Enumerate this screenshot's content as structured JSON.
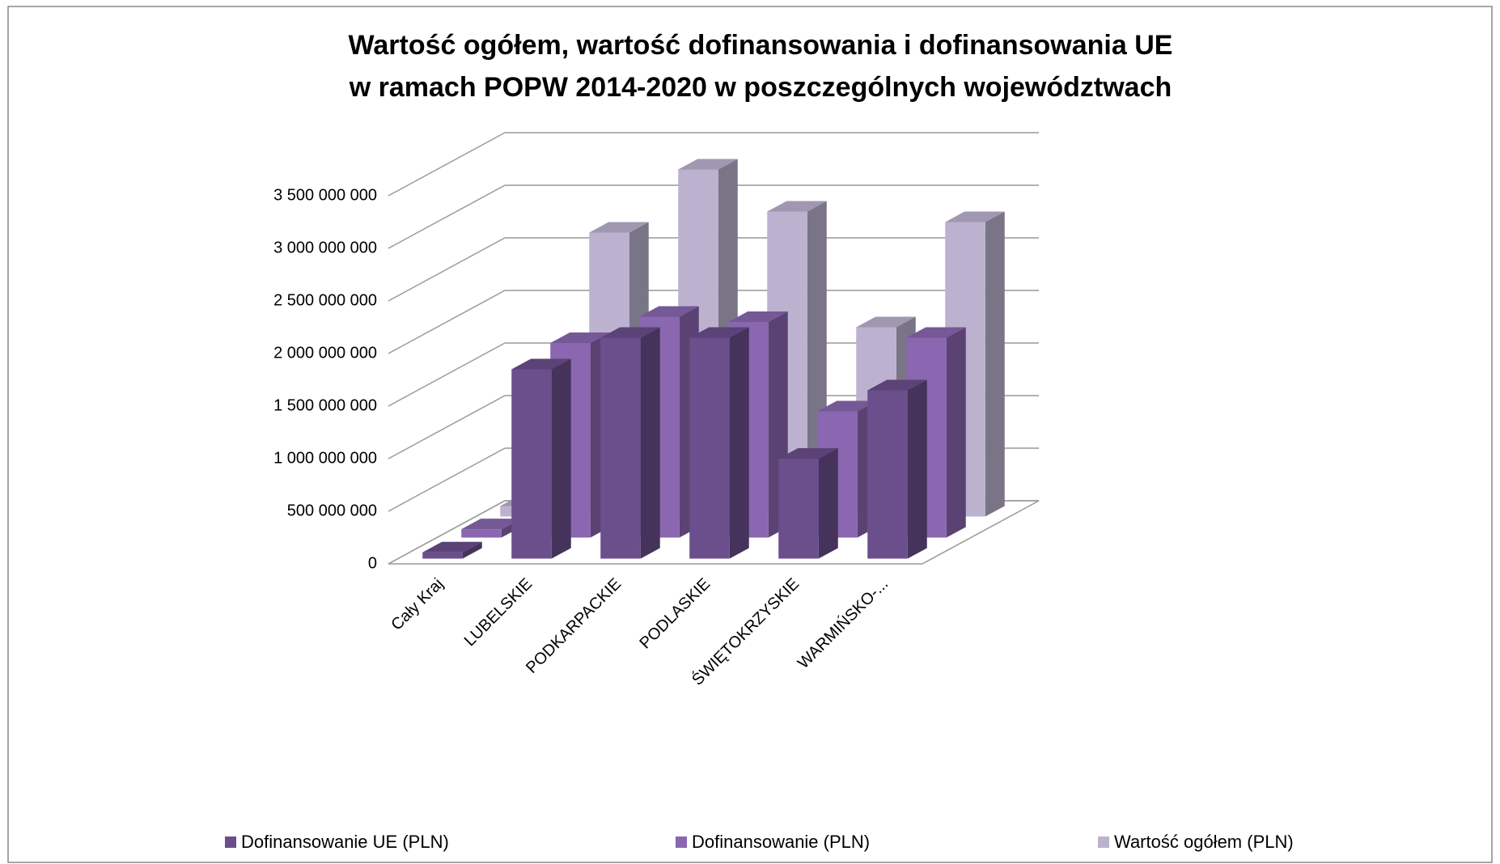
{
  "chart_data": {
    "type": "bar3d",
    "title": "Wartość ogółem, wartość dofinansowania i dofinansowania UE",
    "subtitle": "w ramach POPW 2014-2020 w poszczególnych województwach",
    "categories": [
      "Cały Kraj",
      "LUBELSKIE",
      "PODKARPACKIE",
      "PODLASKIE",
      "ŚWIĘTOKRZYSKIE",
      "WARMIŃSKO-..."
    ],
    "series": [
      {
        "name": "Dofinansowanie UE (PLN)",
        "color": "#6b4e8c",
        "values": [
          60000000,
          1800000000,
          2100000000,
          2100000000,
          950000000,
          1600000000
        ]
      },
      {
        "name": "Dofinansowanie (PLN)",
        "color": "#8a67b0",
        "values": [
          80000000,
          1850000000,
          2100000000,
          2050000000,
          1200000000,
          1900000000
        ]
      },
      {
        "name": "Wartość ogółem (PLN)",
        "color": "#bcb2d0",
        "values": [
          100000000,
          2700000000,
          3300000000,
          2900000000,
          1800000000,
          2800000000
        ]
      }
    ],
    "ylim": [
      0,
      3500000000
    ],
    "yticks": [
      0,
      {
        "value": 500000000,
        "label": "500 000 000"
      },
      {
        "value": 1000000000,
        "label": "1 000 000 000"
      },
      {
        "value": 1500000000,
        "label": "1 500 000 000"
      },
      {
        "value": 2000000000,
        "label": "2 000 000 000"
      },
      {
        "value": 2500000000,
        "label": "2 500 000 000"
      },
      {
        "value": 3000000000,
        "label": "3 000 000 000"
      },
      {
        "value": 3500000000,
        "label": "3 500 000 000"
      }
    ],
    "grid": true,
    "legend": "bottom"
  }
}
